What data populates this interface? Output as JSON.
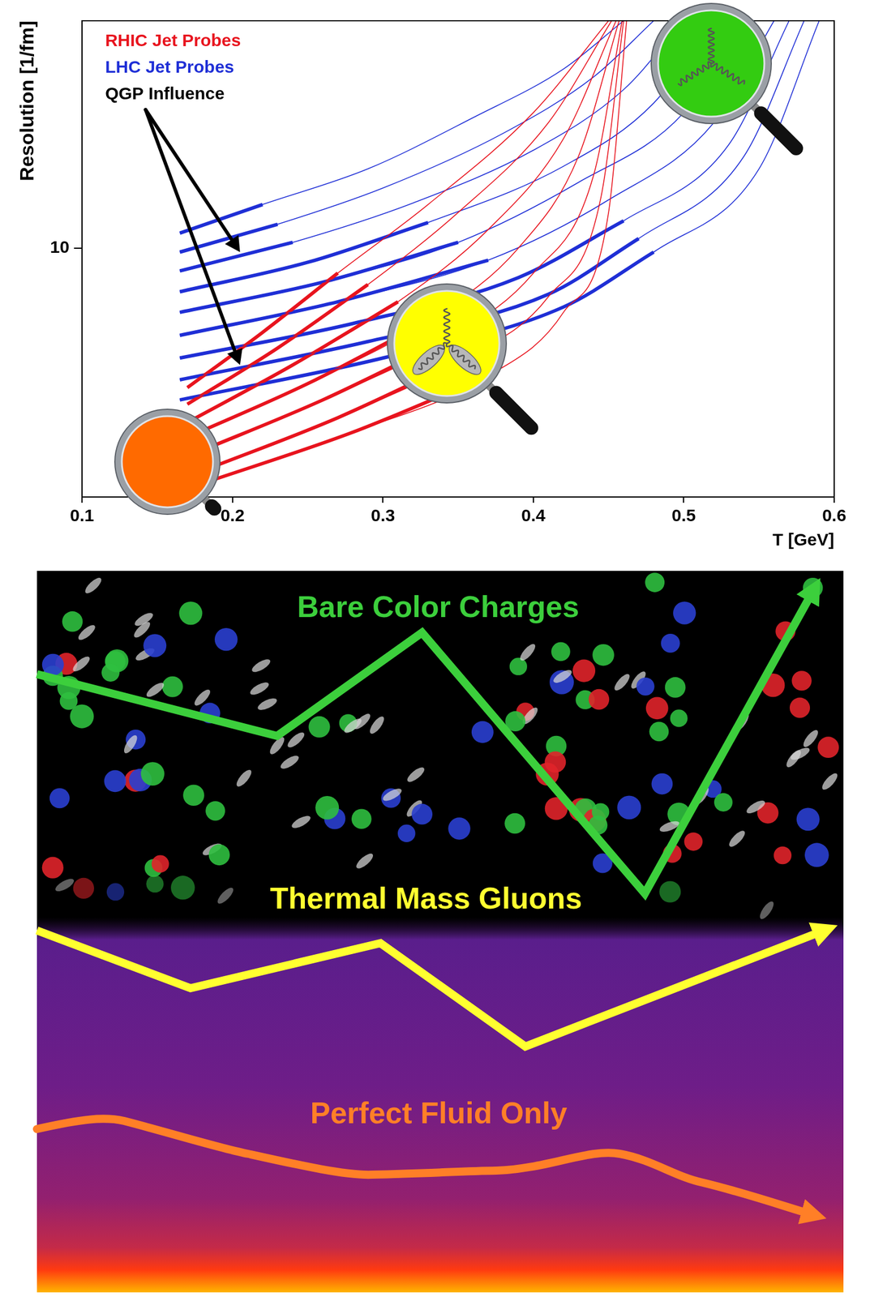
{
  "chart_data": {
    "type": "line",
    "x_label": "T [GeV]",
    "y_label": "Resolution [1/fm]",
    "log": "y",
    "grid": false,
    "legend": "upper left",
    "marker": "none",
    "xlim": [
      0.1,
      0.6
    ],
    "xticks": [
      0.1,
      0.2,
      0.3,
      0.4,
      0.5,
      0.6
    ],
    "ylim": [
      2.8,
      32
    ],
    "yticks": [
      10
    ],
    "series": [
      {
        "name": "RHIC Jet Probes",
        "color": "#e8141e",
        "line_style": "solid",
        "x": [
          0.17,
          0.22,
          0.27,
          0.33,
          0.4,
          0.45,
          null,
          0.17,
          0.23,
          0.29,
          0.35,
          0.41,
          0.452,
          null,
          0.17,
          0.24,
          0.31,
          0.37,
          0.42,
          0.455,
          null,
          0.17,
          0.25,
          0.33,
          0.39,
          0.43,
          0.457,
          null,
          0.175,
          0.26,
          0.34,
          0.4,
          0.44,
          0.459,
          null,
          0.18,
          0.27,
          0.35,
          0.41,
          0.445,
          0.46,
          null,
          0.18,
          0.28,
          0.37,
          0.42,
          0.45,
          0.462
        ],
        "values": [
          4.9,
          6.5,
          8.8,
          12.5,
          20,
          32,
          null,
          4.5,
          6.0,
          8.3,
          12,
          19,
          32,
          null,
          4.1,
          5.5,
          7.6,
          11,
          17.5,
          32,
          null,
          3.8,
          5.0,
          6.9,
          10,
          16,
          32,
          null,
          3.5,
          4.6,
          6.2,
          8.8,
          14.5,
          32,
          null,
          3.2,
          4.2,
          5.6,
          7.8,
          13,
          32,
          null,
          3.0,
          3.9,
          5.2,
          7.2,
          12,
          32
        ]
      },
      {
        "name": "LHC Jet Probes",
        "color": "#1f2fd6",
        "line_style": "solid",
        "x": [
          0.165,
          0.22,
          0.29,
          0.36,
          0.42,
          0.46,
          null,
          0.165,
          0.23,
          0.3,
          0.38,
          0.44,
          0.48,
          null,
          0.165,
          0.24,
          0.32,
          0.4,
          0.46,
          0.5,
          null,
          0.165,
          0.25,
          0.33,
          0.42,
          0.48,
          0.52,
          null,
          0.165,
          0.26,
          0.35,
          0.43,
          0.5,
          0.54,
          null,
          0.165,
          0.27,
          0.37,
          0.45,
          0.52,
          0.56,
          null,
          0.165,
          0.28,
          0.39,
          0.46,
          0.53,
          0.57,
          null,
          0.165,
          0.29,
          0.41,
          0.47,
          0.54,
          0.58,
          null,
          0.165,
          0.3,
          0.42,
          0.48,
          0.55,
          0.59
        ],
        "values": [
          10.8,
          12.5,
          15,
          19.5,
          25,
          32,
          null,
          9.8,
          11.3,
          13.6,
          18,
          24,
          32,
          null,
          8.9,
          10.3,
          12.6,
          16.5,
          22.5,
          32,
          null,
          8.0,
          9.3,
          11.4,
          15.2,
          21,
          32,
          null,
          7.2,
          8.4,
          10.3,
          14,
          20,
          32,
          null,
          6.4,
          7.6,
          9.4,
          12.8,
          19,
          32,
          null,
          5.7,
          6.8,
          8.6,
          11.5,
          17,
          32,
          null,
          5.1,
          6.2,
          7.9,
          10.5,
          16,
          32,
          null,
          4.6,
          5.7,
          7.4,
          9.8,
          15,
          32
        ]
      },
      {
        "color": "#e8141e",
        "line_style": "bold",
        "x": [
          0.17,
          0.22,
          0.27,
          null,
          0.17,
          0.23,
          0.29,
          null,
          0.17,
          0.24,
          0.31,
          null,
          0.17,
          0.25,
          0.33,
          null,
          0.175,
          0.26,
          0.34,
          null,
          0.18,
          0.27,
          0.35,
          null,
          0.18,
          0.28,
          0.37
        ],
        "values": [
          4.9,
          6.5,
          8.8,
          null,
          4.5,
          6.0,
          8.3,
          null,
          4.1,
          5.5,
          7.6,
          null,
          3.8,
          5.0,
          6.9,
          null,
          3.5,
          4.6,
          6.2,
          null,
          3.2,
          4.2,
          5.6,
          null,
          3.0,
          3.9,
          5.2
        ]
      },
      {
        "color": "#1f2fd6",
        "line_style": "bold",
        "x": [
          0.165,
          0.22,
          null,
          0.165,
          0.23,
          null,
          0.165,
          0.24,
          null,
          0.165,
          0.25,
          0.33,
          null,
          0.165,
          0.26,
          0.35,
          null,
          0.165,
          0.27,
          0.37,
          null,
          0.165,
          0.28,
          0.39,
          0.46,
          null,
          0.165,
          0.29,
          0.41,
          0.47,
          null,
          0.165,
          0.3,
          0.42,
          0.48
        ],
        "values": [
          10.8,
          12.5,
          null,
          9.8,
          11.3,
          null,
          8.9,
          10.3,
          null,
          8.0,
          9.3,
          11.4,
          null,
          7.2,
          8.4,
          10.3,
          null,
          6.4,
          7.6,
          9.4,
          null,
          5.7,
          6.8,
          8.6,
          11.5,
          null,
          5.1,
          6.2,
          7.9,
          10.5,
          null,
          4.6,
          5.7,
          7.4,
          9.8
        ]
      }
    ],
    "annotations": [
      {
        "text": "QGP Influence",
        "color": "#000000",
        "arrows_to": [
          [
            0.205,
            9.8
          ],
          [
            0.205,
            5.5
          ]
        ]
      }
    ]
  },
  "illustration": {
    "labels": [
      {
        "text": "Bare Color Charges",
        "color": "#3ccf3c"
      },
      {
        "text": "Thermal Mass Gluons",
        "color": "#ffff30"
      },
      {
        "text": "Perfect Fluid Only",
        "color": "#ff7f27"
      }
    ]
  }
}
